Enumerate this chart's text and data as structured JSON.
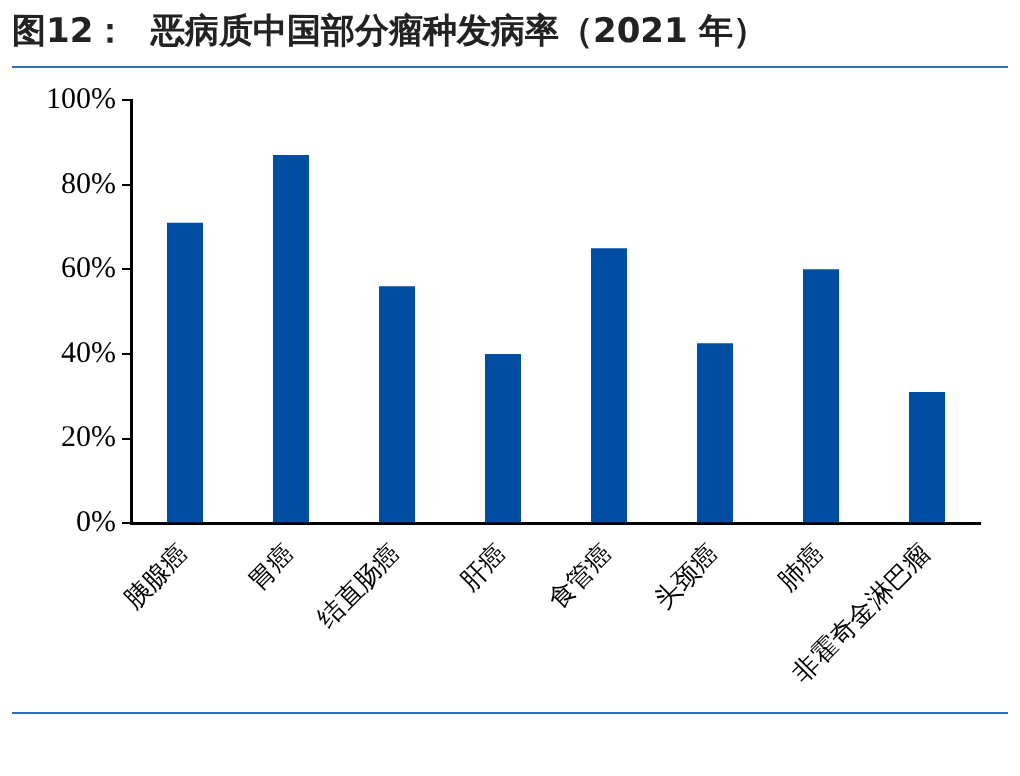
{
  "chart_data": {
    "type": "bar",
    "title": "图12：  恶病质中国部分瘤种发病率（2021 年）",
    "categories": [
      "胰腺癌",
      "胃癌",
      "结直肠癌",
      "肝癌",
      "食管癌",
      "头颈癌",
      "肺癌",
      "非霍奇金淋巴瘤"
    ],
    "values": [
      71,
      87,
      56,
      40,
      65,
      42.5,
      60,
      31
    ],
    "color": "#004ea2",
    "ylim": [
      0,
      100
    ],
    "yticks": [
      {
        "value": 0,
        "label": "0%"
      },
      {
        "value": 20,
        "label": "20%"
      },
      {
        "value": 40,
        "label": "40%"
      },
      {
        "value": 60,
        "label": "60%"
      },
      {
        "value": 80,
        "label": "80%"
      },
      {
        "value": 100,
        "label": "100%"
      }
    ],
    "grid": false,
    "legend": false
  }
}
